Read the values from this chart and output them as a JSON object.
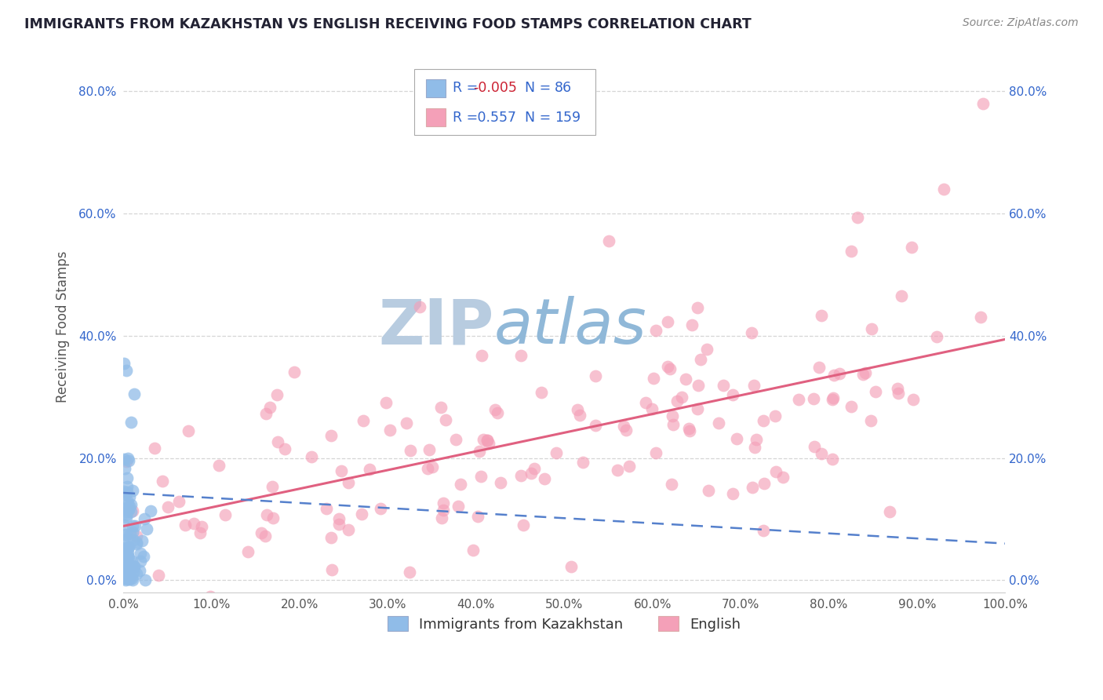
{
  "title": "IMMIGRANTS FROM KAZAKHSTAN VS ENGLISH RECEIVING FOOD STAMPS CORRELATION CHART",
  "source": "Source: ZipAtlas.com",
  "ylabel": "Receiving Food Stamps",
  "legend_label1": "Immigrants from Kazakhstan",
  "legend_label2": "English",
  "R1": -0.005,
  "N1": 86,
  "R2": 0.557,
  "N2": 159,
  "color1": "#90bce8",
  "color2": "#f4a0b8",
  "line_color1": "#5580cc",
  "line_color2": "#e06080",
  "title_color": "#222233",
  "legend_text_color": "#3366cc",
  "R1_color": "#cc2233",
  "R2_color": "#3366cc",
  "watermark_zip_color": "#b8cce0",
  "watermark_atlas_color": "#90b8d8",
  "background": "#ffffff",
  "grid_color": "#cccccc",
  "xlim": [
    0.0,
    1.0
  ],
  "ylim": [
    -0.02,
    0.85
  ],
  "x_ticks": [
    0.0,
    0.1,
    0.2,
    0.3,
    0.4,
    0.5,
    0.6,
    0.7,
    0.8,
    0.9,
    1.0
  ],
  "y_ticks": [
    0.0,
    0.2,
    0.4,
    0.6,
    0.8
  ]
}
